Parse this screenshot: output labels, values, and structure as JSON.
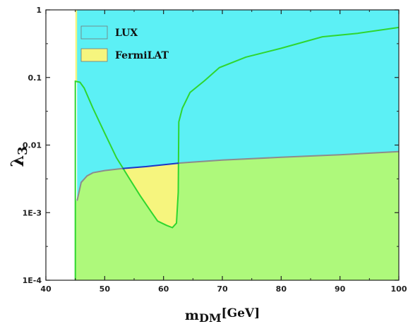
{
  "chart_data": {
    "type": "area",
    "title": "",
    "xlabel": {
      "main": "m",
      "sub": "DM",
      "unit": "[GeV]"
    },
    "ylabel": {
      "main": "λ",
      "sub": "3"
    },
    "xlim": [
      40,
      100
    ],
    "ylim": [
      0.0001,
      1
    ],
    "yscale": "log",
    "grid": false,
    "legend": "top-left",
    "x_ticks": [
      40,
      50,
      60,
      70,
      80,
      90,
      100
    ],
    "x_tick_labels": [
      "40",
      "50",
      "60",
      "70",
      "80",
      "90",
      "100"
    ],
    "y_ticks": [
      0.0001,
      0.001,
      0.01,
      0.1,
      1
    ],
    "y_tick_labels": [
      "1E-4",
      "1E-3",
      "0.01",
      "0.1",
      "1"
    ],
    "series": [
      {
        "name": "FermiLAT",
        "color": "#f6f57e",
        "edge": "#2fd62f",
        "boundary": [
          [
            45.0,
            0.0001
          ],
          [
            45.0,
            0.088
          ],
          [
            45.8,
            0.085
          ],
          [
            46.5,
            0.07
          ],
          [
            48,
            0.035
          ],
          [
            50,
            0.015
          ],
          [
            52,
            0.0065
          ],
          [
            54,
            0.0034
          ],
          [
            56,
            0.0018
          ],
          [
            58,
            0.001
          ],
          [
            59,
            0.00075
          ],
          [
            60.5,
            0.00065
          ],
          [
            61.5,
            0.0006
          ],
          [
            62.2,
            0.0007
          ],
          [
            62.5,
            0.002
          ],
          [
            62.6,
            0.022
          ],
          [
            63.2,
            0.035
          ],
          [
            64.5,
            0.06
          ],
          [
            67,
            0.09
          ],
          [
            69.5,
            0.14
          ],
          [
            74,
            0.2
          ],
          [
            80,
            0.27
          ],
          [
            87,
            0.4
          ],
          [
            93,
            0.45
          ],
          [
            100,
            0.55
          ]
        ]
      },
      {
        "name": "LUX",
        "color": "#5cf0f5",
        "edge": "#1b35c8",
        "boundary": [
          [
            45.3,
            0.0015
          ],
          [
            46,
            0.0028
          ],
          [
            47,
            0.0035
          ],
          [
            48,
            0.0039
          ],
          [
            50,
            0.0042
          ],
          [
            53,
            0.0045
          ],
          [
            57,
            0.0048
          ],
          [
            62.6,
            0.0054
          ],
          [
            65,
            0.0056
          ],
          [
            70,
            0.006
          ],
          [
            80,
            0.0066
          ],
          [
            90,
            0.0072
          ],
          [
            100,
            0.008
          ]
        ]
      }
    ],
    "allowed_region_color": "#aef97b"
  },
  "legend": {
    "items": [
      {
        "label": "LUX",
        "color": "#5cf0f5"
      },
      {
        "label": "FermiLAT",
        "color": "#f6f57e"
      }
    ]
  }
}
